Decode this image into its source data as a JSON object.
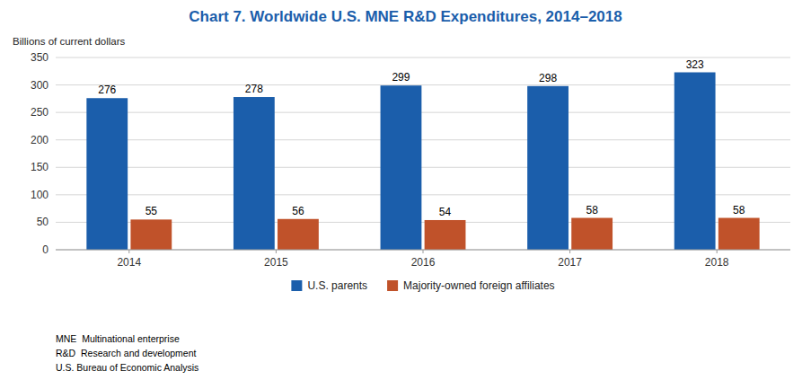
{
  "chart_data": {
    "type": "bar",
    "title": "Chart 7. Worldwide U.S. MNE R&D Expenditures, 2014–2018",
    "ylabel": "Billions of current dollars",
    "categories": [
      "2014",
      "2015",
      "2016",
      "2017",
      "2018"
    ],
    "series": [
      {
        "name": "U.S. parents",
        "color": "#1B5EAB",
        "values": [
          276,
          278,
          299,
          298,
          323
        ]
      },
      {
        "name": "Majority-owned foreign affiliates",
        "color": "#C0522A",
        "values": [
          55,
          56,
          54,
          58,
          58
        ]
      }
    ],
    "ylim": [
      0,
      350
    ],
    "yticks": [
      0,
      50,
      100,
      150,
      200,
      250,
      300,
      350
    ],
    "grid": true,
    "legend": "bottom",
    "data_labels": true,
    "annotations": [
      "MNE  Multinational enterprise",
      "R&D  Research and development",
      "U.S. Bureau of Economic Analysis"
    ]
  }
}
